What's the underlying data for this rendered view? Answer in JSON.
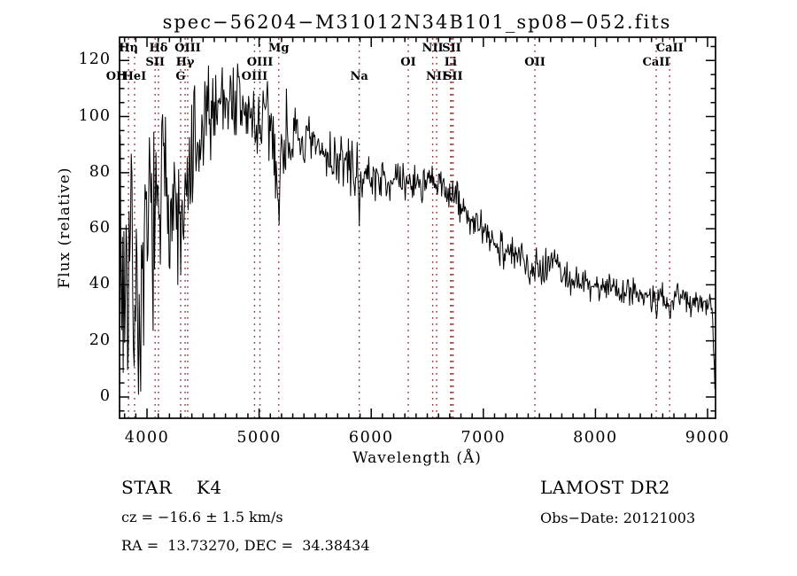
{
  "figure": {
    "background": "#ffffff",
    "trace_color": "#000000",
    "frame_color": "#000000",
    "ref_line_color": "#993333"
  },
  "chart_data": {
    "type": "line",
    "title": "spec−56204−M31012N34B101_sp08−052.fits",
    "xlabel": "Wavelength (Å)",
    "ylabel": "Flux (relative)",
    "xlim": [
      3755,
      9071
    ],
    "ylim": [
      -7.6,
      128.3
    ],
    "xticks": [
      4000,
      5000,
      6000,
      7000,
      8000,
      9000
    ],
    "yticks": [
      0,
      20,
      40,
      60,
      80,
      100,
      120
    ],
    "x_minor_step": 100,
    "y_minor_step": 5,
    "grid": false,
    "legend": "none",
    "series": [
      {
        "name": "spectrum",
        "color": "#000000",
        "anchors": [
          [
            3755,
            62
          ],
          [
            3775,
            40
          ],
          [
            3800,
            44
          ],
          [
            3830,
            48
          ],
          [
            3860,
            50
          ],
          [
            3900,
            38
          ],
          [
            3933,
            26
          ],
          [
            3968,
            32
          ],
          [
            4000,
            55
          ],
          [
            4040,
            68
          ],
          [
            4075,
            58
          ],
          [
            4102,
            56
          ],
          [
            4130,
            72
          ],
          [
            4170,
            80
          ],
          [
            4210,
            70
          ],
          [
            4250,
            67
          ],
          [
            4300,
            56
          ],
          [
            4340,
            62
          ],
          [
            4380,
            78
          ],
          [
            4420,
            86
          ],
          [
            4460,
            82
          ],
          [
            4500,
            95
          ],
          [
            4550,
            100
          ],
          [
            4600,
            104
          ],
          [
            4650,
            107
          ],
          [
            4700,
            108
          ],
          [
            4750,
            106
          ],
          [
            4800,
            105
          ],
          [
            4850,
            102
          ],
          [
            4900,
            100
          ],
          [
            4950,
            98
          ],
          [
            5007,
            97
          ],
          [
            5060,
            98
          ],
          [
            5120,
            95
          ],
          [
            5160,
            82
          ],
          [
            5175,
            54
          ],
          [
            5190,
            86
          ],
          [
            5230,
            93
          ],
          [
            5290,
            92
          ],
          [
            5350,
            91
          ],
          [
            5420,
            90
          ],
          [
            5500,
            88
          ],
          [
            5580,
            87
          ],
          [
            5660,
            85
          ],
          [
            5740,
            84
          ],
          [
            5820,
            82
          ],
          [
            5880,
            79
          ],
          [
            5893,
            56
          ],
          [
            5906,
            79
          ],
          [
            5960,
            79
          ],
          [
            6040,
            78
          ],
          [
            6120,
            78
          ],
          [
            6200,
            77
          ],
          [
            6280,
            76
          ],
          [
            6360,
            77
          ],
          [
            6440,
            76
          ],
          [
            6520,
            76
          ],
          [
            6600,
            75
          ],
          [
            6680,
            74
          ],
          [
            6730,
            72
          ],
          [
            6800,
            68
          ],
          [
            6870,
            64
          ],
          [
            6940,
            61
          ],
          [
            7010,
            58
          ],
          [
            7080,
            56
          ],
          [
            7150,
            54
          ],
          [
            7220,
            52
          ],
          [
            7290,
            50
          ],
          [
            7360,
            48
          ],
          [
            7430,
            47
          ],
          [
            7500,
            46
          ],
          [
            7570,
            48
          ],
          [
            7640,
            50
          ],
          [
            7700,
            44
          ],
          [
            7770,
            42
          ],
          [
            7840,
            41
          ],
          [
            7910,
            40
          ],
          [
            7980,
            40
          ],
          [
            8050,
            39
          ],
          [
            8120,
            40
          ],
          [
            8190,
            39
          ],
          [
            8260,
            38
          ],
          [
            8330,
            38
          ],
          [
            8400,
            37
          ],
          [
            8460,
            36
          ],
          [
            8490,
            36
          ],
          [
            8498,
            28
          ],
          [
            8510,
            36
          ],
          [
            8534,
            36
          ],
          [
            8542,
            26
          ],
          [
            8554,
            35
          ],
          [
            8600,
            36
          ],
          [
            8654,
            34
          ],
          [
            8662,
            25
          ],
          [
            8674,
            34
          ],
          [
            8730,
            36
          ],
          [
            8800,
            35
          ],
          [
            8870,
            34
          ],
          [
            8940,
            34
          ],
          [
            9000,
            35
          ],
          [
            9040,
            34
          ],
          [
            9055,
            15
          ],
          [
            9065,
            3
          ],
          [
            9071,
            2
          ]
        ],
        "noise_segments": [
          [
            3755,
            3905,
            30
          ],
          [
            3905,
            4150,
            22
          ],
          [
            4150,
            4430,
            17
          ],
          [
            4430,
            5250,
            11
          ],
          [
            5250,
            5900,
            6.5
          ],
          [
            5900,
            6740,
            4.5
          ],
          [
            6740,
            7600,
            4.5
          ],
          [
            7600,
            9035,
            3.5
          ],
          [
            9035,
            9071,
            1.5
          ]
        ]
      }
    ],
    "spectral_lines": [
      {
        "label": "OII",
        "wavelength": 3727,
        "row": 3
      },
      {
        "label": "Hη",
        "wavelength": 3835,
        "row": 1
      },
      {
        "label": "HeI",
        "wavelength": 3889,
        "row": 3
      },
      {
        "label": "SII",
        "wavelength": 4072,
        "row": 2
      },
      {
        "label": "Hδ",
        "wavelength": 4102,
        "row": 1
      },
      {
        "label": "G",
        "wavelength": 4300,
        "row": 3
      },
      {
        "label": "Hγ",
        "wavelength": 4340,
        "row": 2
      },
      {
        "label": "OIII",
        "wavelength": 4363,
        "row": 1
      },
      {
        "label": "OIII",
        "wavelength": 4959,
        "row": 3
      },
      {
        "label": "OIII",
        "wavelength": 5007,
        "row": 2
      },
      {
        "label": "Mg",
        "wavelength": 5175,
        "row": 1
      },
      {
        "label": "Na",
        "wavelength": 5893,
        "row": 3
      },
      {
        "label": "OI",
        "wavelength": 6330,
        "row": 2
      },
      {
        "label": "NII",
        "wavelength": 6548,
        "row": 1
      },
      {
        "label": "SII",
        "wavelength": 6717,
        "row": 1
      },
      {
        "label": "NII",
        "wavelength": 6583,
        "row": 3
      },
      {
        "label": "SII",
        "wavelength": 6731,
        "row": 3
      },
      {
        "label": "Li",
        "wavelength": 6708,
        "row": 2
      },
      {
        "label": "OII",
        "wavelength": 7460,
        "row": 2
      },
      {
        "label": "CaII",
        "wavelength": 8542,
        "row": 2
      },
      {
        "label": "CaII",
        "wavelength": 8662,
        "row": 1
      }
    ]
  },
  "annotations": {
    "class_label": "STAR    K4",
    "survey": "LAMOST DR2",
    "cz": "cz = −16.6 ± 1.5 km/s",
    "obs_date": "Obs−Date: 20121003",
    "coords": "RA =  13.73270, DEC =  34.38434"
  }
}
